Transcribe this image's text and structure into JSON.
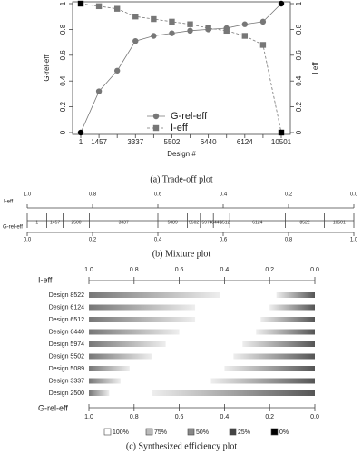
{
  "chart_data": [
    {
      "type": "line",
      "caption": "(a)  Trade-off plot",
      "xlabel": "Design #",
      "ylabel": "G-rel-eff",
      "y2label": "I eff",
      "categories": [
        "1",
        "1457",
        null,
        "3337",
        null,
        "5502",
        null,
        "6440",
        null,
        "6124",
        null,
        "10501"
      ],
      "ylim": [
        0,
        1
      ],
      "yticks": [
        0,
        0.2,
        0.4,
        0.6,
        0.8,
        1
      ],
      "y2lim": [
        0,
        1
      ],
      "y2ticks": [
        0,
        0.2,
        0.4,
        0.6,
        0.8,
        1
      ],
      "series": [
        {
          "name": "G-rel-eff",
          "color": "#777777",
          "marker": "circle",
          "line_style": "solid",
          "values": [
            0,
            0.32,
            0.48,
            0.71,
            0.75,
            0.77,
            0.79,
            0.8,
            0.81,
            0.84,
            0.86,
            1
          ]
        },
        {
          "name": "I-eff",
          "color": "#777777",
          "marker": "square",
          "line_style": "dashed",
          "axis": "y2",
          "values": [
            1,
            0.98,
            0.96,
            0.9,
            0.88,
            0.86,
            0.84,
            0.81,
            0.79,
            0.75,
            0.68,
            0
          ]
        }
      ]
    },
    {
      "type": "mixture",
      "caption": "(b)  Mixture plot",
      "toplabel": "I-eff",
      "bottomlabel": "G-rel-eff",
      "x2lim": [
        1,
        0
      ],
      "x2ticks": [
        {
          "value": 1,
          "label": "1.0"
        },
        0.8,
        0.6,
        0.4,
        0.2,
        {
          "value": 0,
          "label": "0.0"
        }
      ],
      "xlim": [
        0,
        1
      ],
      "xticks": [
        {
          "value": 0,
          "label": "0.0"
        },
        0.2,
        0.4,
        0.6,
        0.8,
        {
          "value": 1,
          "label": "1.0"
        }
      ],
      "segments": [
        "1",
        "1457",
        "2500",
        "3337",
        "5089",
        "5502",
        "5974",
        "6440",
        "6512",
        "6124",
        "8522",
        "10501"
      ],
      "boundaries": [
        0,
        0.06,
        0.11,
        0.19,
        0.4,
        0.49,
        0.53,
        0.57,
        0.59,
        0.62,
        0.79,
        0.91,
        1
      ]
    },
    {
      "type": "efficiency",
      "caption": "(c)  Synthesized efficiency plot",
      "toplabel": "I-eff",
      "bottomlabel": "G-rel-eff",
      "x2lim": [
        1,
        0
      ],
      "x2ticks": [
        {
          "value": 1,
          "label": "1.0"
        },
        0.8,
        0.6,
        0.4,
        0.2,
        {
          "value": 0,
          "label": "0.0"
        }
      ],
      "xlim": [
        1,
        0
      ],
      "xticks": [
        {
          "value": 1,
          "label": "1.0"
        },
        0.8,
        0.6,
        0.4,
        0.2,
        {
          "value": 0,
          "label": "0.0"
        }
      ],
      "categories": [
        "Design 8522",
        "Design 6124",
        "Design 6512",
        "Design 6440",
        "Design 5974",
        "Design 5502",
        "Design 5089",
        "Design 3337",
        "Design 2500"
      ],
      "series": [
        {
          "name": "I-eff",
          "values": [
            0.42,
            0.53,
            0.53,
            0.6,
            0.66,
            0.72,
            0.82,
            0.86,
            0.91
          ]
        },
        {
          "name": "G-rel-eff",
          "values": [
            0.17,
            0.2,
            0.24,
            0.26,
            0.32,
            0.36,
            0.4,
            0.46,
            0.72
          ]
        }
      ],
      "legend": [
        {
          "label": "100%",
          "color": "#ffffff"
        },
        {
          "label": "75%",
          "color": "#bbbbbb"
        },
        {
          "label": "50%",
          "color": "#888888"
        },
        {
          "label": "25%",
          "color": "#444444"
        },
        {
          "label": "0%",
          "color": "#000000"
        }
      ]
    }
  ]
}
